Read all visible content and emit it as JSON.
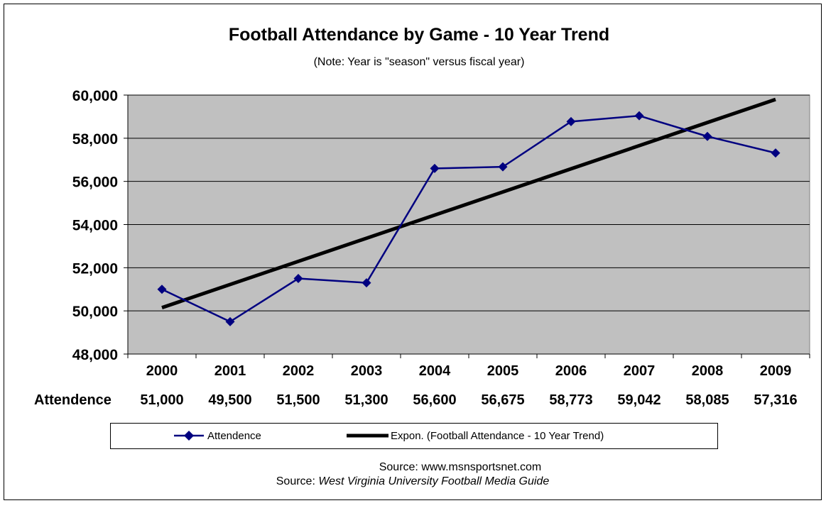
{
  "chart_data": {
    "type": "line",
    "title": "Football Attendance by Game - 10 Year Trend",
    "subtitle": "(Note: Year is \"season\" versus fiscal year)",
    "x": [
      "2000",
      "2001",
      "2002",
      "2003",
      "2004",
      "2005",
      "2006",
      "2007",
      "2008",
      "2009"
    ],
    "series": [
      {
        "name": "Attendence",
        "values": [
          51000,
          49500,
          51500,
          51300,
          56600,
          56675,
          58773,
          59042,
          58085,
          57316
        ],
        "value_labels": [
          "51,000",
          "49,500",
          "51,500",
          "51,300",
          "56,600",
          "56,675",
          "58,773",
          "59,042",
          "58,085",
          "57,316"
        ],
        "color": "#000080",
        "marker": "diamond"
      },
      {
        "name": "Expon. (Football Attendance - 10 Year Trend)",
        "type": "trendline",
        "start": 50150,
        "end": 59800,
        "color": "#000000"
      }
    ],
    "ylim": [
      48000,
      60000
    ],
    "yticks": [
      48000,
      50000,
      52000,
      54000,
      56000,
      58000,
      60000
    ],
    "ytick_labels": [
      "48,000",
      "50,000",
      "52,000",
      "54,000",
      "56,000",
      "58,000",
      "60,000"
    ],
    "grid": true,
    "plot_background": "#C0C0C0",
    "data_table": {
      "row_label": "Attendence"
    },
    "legend": {
      "position": "bottom"
    },
    "sources": {
      "line1": "Source: www.msnsportsnet.com",
      "line2_prefix": "Source: ",
      "line2_italic": "West Virginia University Football Media Guide"
    }
  }
}
